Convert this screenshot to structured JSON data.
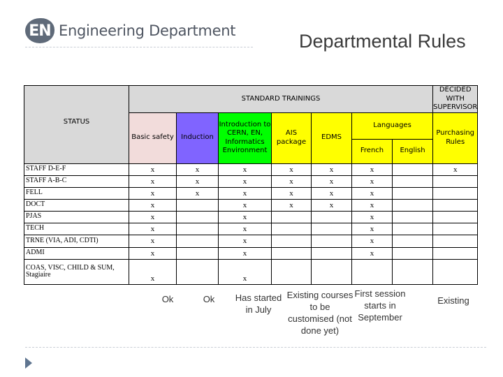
{
  "header": {
    "logo_mark": "EN",
    "logo_text": "Engineering Department",
    "title": "Departmental Rules"
  },
  "table": {
    "status_label": "STATUS",
    "standard_trainings_label": "STANDARD TRAININGS",
    "decided_label": "DECIDED WITH SUPERVISOR",
    "languages_label": "Languages",
    "columns": {
      "basic_safety": "Basic safety",
      "induction": "Induction",
      "intro": "Introduction to CERN, EN, Informatics Environment",
      "ais": "AIS package",
      "edms": "EDMS",
      "french": "French",
      "english": "English",
      "purchasing": "Purchasing Rules"
    },
    "rows": [
      {
        "label": "STAFF D-E-F",
        "cells": [
          "x",
          "x",
          "x",
          "x",
          "x",
          "x",
          "",
          "x"
        ]
      },
      {
        "label": "STAFF A-B-C",
        "cells": [
          "x",
          "x",
          "x",
          "x",
          "x",
          "x",
          "",
          ""
        ]
      },
      {
        "label": "FELL",
        "cells": [
          "x",
          "x",
          "x",
          "x",
          "x",
          "x",
          "",
          ""
        ]
      },
      {
        "label": "DOCT",
        "cells": [
          "x",
          "",
          "x",
          "x",
          "x",
          "x",
          "",
          ""
        ]
      },
      {
        "label": "PJAS",
        "cells": [
          "x",
          "",
          "x",
          "",
          "",
          "x",
          "",
          ""
        ]
      },
      {
        "label": "TECH",
        "cells": [
          "x",
          "",
          "x",
          "",
          "",
          "x",
          "",
          ""
        ]
      },
      {
        "label": "TRNE (VIA, ADI, CDTI)",
        "cells": [
          "x",
          "",
          "x",
          "",
          "",
          "x",
          "",
          ""
        ]
      },
      {
        "label": "ADMI",
        "cells": [
          "x",
          "",
          "x",
          "",
          "",
          "x",
          "",
          ""
        ]
      },
      {
        "label": "COAS, VISC, CHILD & SUM, Stagiaire",
        "cells": [
          "x",
          "",
          "x",
          "",
          "",
          "",
          "",
          ""
        ]
      }
    ]
  },
  "notes": {
    "basic_safety": "Ok",
    "induction": "Ok",
    "intro": "Has started in July",
    "courses": "Existing courses to be customised (not done yet)",
    "french": "First session starts in September",
    "purchasing": "Existing"
  }
}
